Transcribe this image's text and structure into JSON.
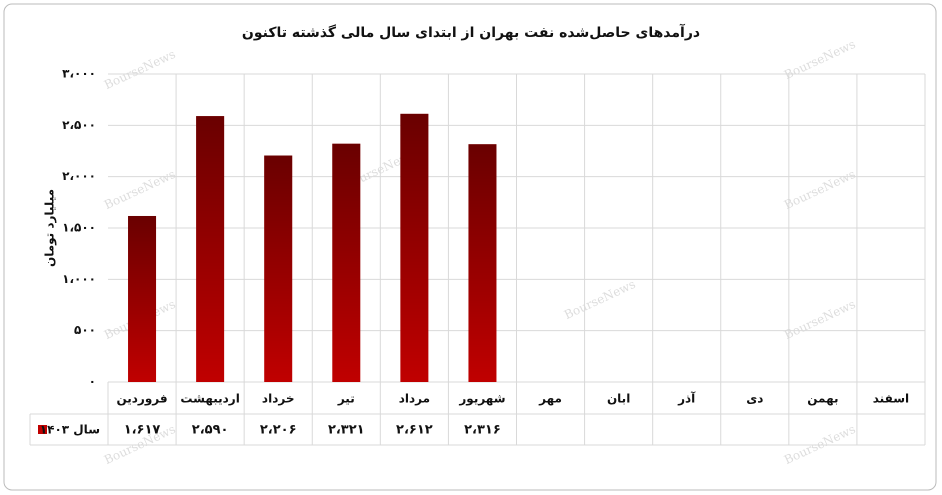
{
  "chart_data": {
    "type": "bar",
    "title": "درآمدهای حاصل‌شده نفت بهران از ابتدای سال مالی گذشته تاکنون",
    "y_label": "میلیارد تومان",
    "watermark": "BourseNews",
    "categories": [
      "فروردین",
      "اردیبهشت",
      "خرداد",
      "تیر",
      "مرداد",
      "شهریور",
      "مهر",
      "ابان",
      "آذر",
      "دی",
      "بهمن",
      "اسفند"
    ],
    "series": [
      {
        "name": "سال ۱۴۰۳",
        "color": "#c00000",
        "values": [
          1617,
          2590,
          2206,
          2321,
          2612,
          2316,
          null,
          null,
          null,
          null,
          null,
          null
        ],
        "value_labels": [
          "۱،۶۱۷",
          "۲،۵۹۰",
          "۲،۲۰۶",
          "۲،۳۲۱",
          "۲،۶۱۲",
          "۲،۳۱۶",
          null,
          null,
          null,
          null,
          null,
          null
        ]
      }
    ],
    "ylim": [
      0,
      3000
    ],
    "yticks": [
      {
        "value": 0,
        "label": "۰"
      },
      {
        "value": 500,
        "label": "۵۰۰"
      },
      {
        "value": 1000,
        "label": "۱،۰۰۰"
      },
      {
        "value": 1500,
        "label": "۱،۵۰۰"
      },
      {
        "value": 2000,
        "label": "۲،۰۰۰"
      },
      {
        "value": 2500,
        "label": "۲،۵۰۰"
      },
      {
        "value": 3000,
        "label": "۳،۰۰۰"
      }
    ],
    "grid": true
  }
}
